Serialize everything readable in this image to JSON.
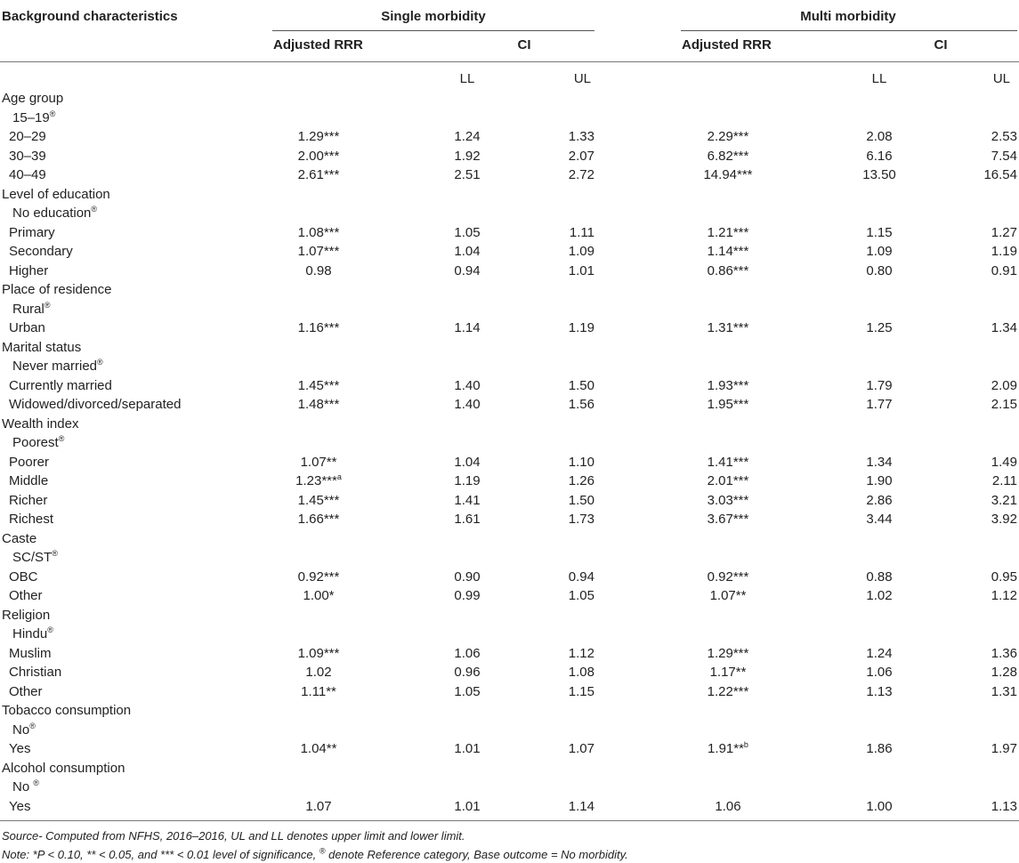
{
  "table": {
    "headers": {
      "background": "Background characteristics",
      "single": "Single morbidity",
      "multi": "Multi morbidity",
      "rrr": "Adjusted RRR",
      "ci": "CI",
      "ll": "LL",
      "ul": "UL"
    },
    "reference_mark": "®",
    "rows": [
      {
        "label": "Age group",
        "type": "group"
      },
      {
        "label": "15–19",
        "type": "ref"
      },
      {
        "label": "20–29",
        "type": "data",
        "s_rrr": "1.29***",
        "s_ll": "1.24",
        "s_ul": "1.33",
        "m_rrr": "2.29***",
        "m_ll": "2.08",
        "m_ul": "2.53"
      },
      {
        "label": "30–39",
        "type": "data",
        "s_rrr": "2.00***",
        "s_ll": "1.92",
        "s_ul": "2.07",
        "m_rrr": "6.82***",
        "m_ll": "6.16",
        "m_ul": "7.54"
      },
      {
        "label": "40–49",
        "type": "data",
        "s_rrr": "2.61***",
        "s_ll": "2.51",
        "s_ul": "2.72",
        "m_rrr": "14.94***",
        "m_ll": "13.50",
        "m_ul": "16.54"
      },
      {
        "label": "Level of education",
        "type": "group"
      },
      {
        "label": "No education",
        "type": "ref"
      },
      {
        "label": "Primary",
        "type": "data",
        "s_rrr": "1.08***",
        "s_ll": "1.05",
        "s_ul": "1.11",
        "m_rrr": "1.21***",
        "m_ll": "1.15",
        "m_ul": "1.27"
      },
      {
        "label": "Secondary",
        "type": "data",
        "s_rrr": "1.07***",
        "s_ll": "1.04",
        "s_ul": "1.09",
        "m_rrr": "1.14***",
        "m_ll": "1.09",
        "m_ul": "1.19"
      },
      {
        "label": "Higher",
        "type": "data",
        "s_rrr": "0.98",
        "s_ll": "0.94",
        "s_ul": "1.01",
        "m_rrr": "0.86***",
        "m_ll": "0.80",
        "m_ul": "0.91"
      },
      {
        "label": "Place of residence",
        "type": "group"
      },
      {
        "label": "Rural",
        "type": "ref"
      },
      {
        "label": "Urban",
        "type": "data",
        "s_rrr": "1.16***",
        "s_ll": "1.14",
        "s_ul": "1.19",
        "m_rrr": "1.31***",
        "m_ll": "1.25",
        "m_ul": "1.34"
      },
      {
        "label": "Marital status",
        "type": "group"
      },
      {
        "label": "Never married",
        "type": "ref"
      },
      {
        "label": "Currently married",
        "type": "data",
        "s_rrr": "1.45***",
        "s_ll": "1.40",
        "s_ul": "1.50",
        "m_rrr": "1.93***",
        "m_ll": "1.79",
        "m_ul": "2.09"
      },
      {
        "label": "Widowed/divorced/separated",
        "type": "data",
        "s_rrr": "1.48***",
        "s_ll": "1.40",
        "s_ul": "1.56",
        "m_rrr": "1.95***",
        "m_ll": "1.77",
        "m_ul": "2.15"
      },
      {
        "label": "Wealth index",
        "type": "group"
      },
      {
        "label": "Poorest",
        "type": "ref"
      },
      {
        "label": "Poorer",
        "type": "data",
        "s_rrr": "1.07**",
        "s_ll": "1.04",
        "s_ul": "1.10",
        "m_rrr": "1.41***",
        "m_ll": "1.34",
        "m_ul": "1.49"
      },
      {
        "label": "Middle",
        "type": "data",
        "s_rrr": "1.23***",
        "s_rrr_sup": "a",
        "s_ll": "1.19",
        "s_ul": "1.26",
        "m_rrr": "2.01***",
        "m_ll": "1.90",
        "m_ul": "2.11"
      },
      {
        "label": "Richer",
        "type": "data",
        "s_rrr": "1.45***",
        "s_ll": "1.41",
        "s_ul": "1.50",
        "m_rrr": "3.03***",
        "m_ll": "2.86",
        "m_ul": "3.21"
      },
      {
        "label": "Richest",
        "type": "data",
        "s_rrr": "1.66***",
        "s_ll": "1.61",
        "s_ul": "1.73",
        "m_rrr": "3.67***",
        "m_ll": "3.44",
        "m_ul": "3.92"
      },
      {
        "label": "Caste",
        "type": "group"
      },
      {
        "label": "SC/ST",
        "type": "ref"
      },
      {
        "label": "OBC",
        "type": "data",
        "s_rrr": "0.92***",
        "s_ll": "0.90",
        "s_ul": "0.94",
        "m_rrr": "0.92***",
        "m_ll": "0.88",
        "m_ul": "0.95"
      },
      {
        "label": "Other",
        "type": "data",
        "s_rrr": "1.00*",
        "s_ll": "0.99",
        "s_ul": "1.05",
        "m_rrr": "1.07**",
        "m_ll": "1.02",
        "m_ul": "1.12"
      },
      {
        "label": "Religion",
        "type": "group"
      },
      {
        "label": "Hindu",
        "type": "ref"
      },
      {
        "label": "Muslim",
        "type": "data",
        "s_rrr": "1.09***",
        "s_ll": "1.06",
        "s_ul": "1.12",
        "m_rrr": "1.29***",
        "m_ll": "1.24",
        "m_ul": "1.36"
      },
      {
        "label": "Christian",
        "type": "data",
        "s_rrr": "1.02",
        "s_ll": "0.96",
        "s_ul": "1.08",
        "m_rrr": "1.17**",
        "m_ll": "1.06",
        "m_ul": "1.28"
      },
      {
        "label": "Other",
        "type": "data",
        "s_rrr": "1.11**",
        "s_ll": "1.05",
        "s_ul": "1.15",
        "m_rrr": "1.22***",
        "m_ll": "1.13",
        "m_ul": "1.31"
      },
      {
        "label": "Tobacco consumption",
        "type": "group"
      },
      {
        "label": "No",
        "type": "ref"
      },
      {
        "label": "Yes",
        "type": "data",
        "s_rrr": "1.04**",
        "s_ll": "1.01",
        "s_ul": "1.07",
        "m_rrr": "1.91**",
        "m_rrr_sup": "b",
        "m_ll": "1.86",
        "m_ul": "1.97"
      },
      {
        "label": "Alcohol consumption",
        "type": "group"
      },
      {
        "label": "No ",
        "type": "ref"
      },
      {
        "label": "Yes",
        "type": "data",
        "s_rrr": "1.07",
        "s_ll": "1.01",
        "s_ul": "1.14",
        "m_rrr": "1.06",
        "m_ll": "1.00",
        "m_ul": "1.13"
      }
    ]
  },
  "notes": {
    "source": "Source- Computed from NFHS, 2016–2016, UL and LL denotes upper limit and lower limit.",
    "note_prefix": "Note: *P < 0.10, ** < 0.05, and *** < 0.01 level of significance, ",
    "note_suffix": " denote Reference category, Base outcome = No morbidity."
  }
}
